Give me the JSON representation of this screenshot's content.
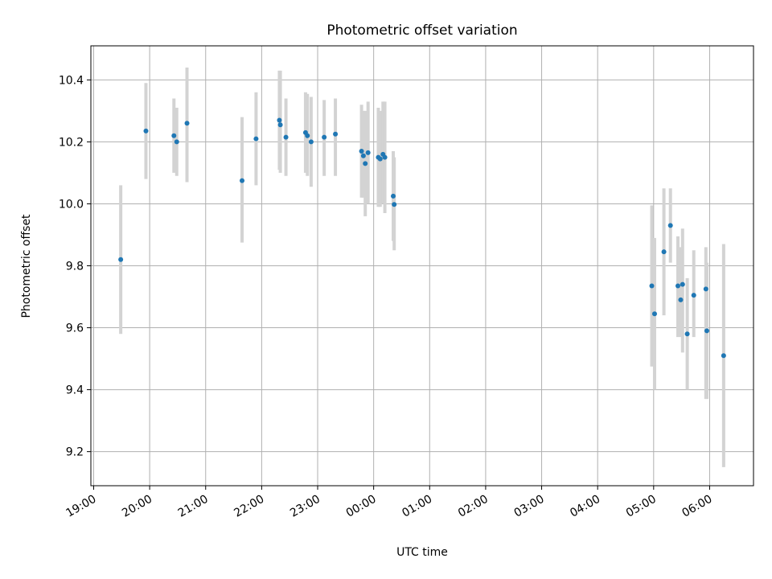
{
  "chart_data": {
    "type": "scatter",
    "title": "Photometric offset variation",
    "xlabel": "UTC time",
    "ylabel": "Photometric offset",
    "x_is_time": true,
    "xlim": [
      "18:57",
      "06:47"
    ],
    "ylim": [
      9.09,
      10.51
    ],
    "x_ticks": [
      "19:00",
      "20:00",
      "21:00",
      "22:00",
      "23:00",
      "00:00",
      "01:00",
      "02:00",
      "03:00",
      "04:00",
      "05:00",
      "06:00"
    ],
    "y_ticks": [
      "9.2",
      "9.4",
      "9.6",
      "9.8",
      "10.0",
      "10.2",
      "10.4"
    ],
    "grid": true,
    "colors": {
      "point": "#1f77b4",
      "error_bar": "#d3d3d3",
      "grid": "#b0b0b0"
    },
    "points": [
      {
        "t": "19:29",
        "y": 9.82,
        "ylo": 9.58,
        "yhi": 10.06
      },
      {
        "t": "19:56",
        "y": 10.235,
        "ylo": 10.08,
        "yhi": 10.39
      },
      {
        "t": "20:26",
        "y": 10.22,
        "ylo": 10.1,
        "yhi": 10.34
      },
      {
        "t": "20:29",
        "y": 10.2,
        "ylo": 10.09,
        "yhi": 10.31
      },
      {
        "t": "20:40",
        "y": 10.26,
        "ylo": 10.07,
        "yhi": 10.44
      },
      {
        "t": "21:39",
        "y": 10.075,
        "ylo": 9.875,
        "yhi": 10.28
      },
      {
        "t": "21:54",
        "y": 10.21,
        "ylo": 10.06,
        "yhi": 10.36
      },
      {
        "t": "22:19",
        "y": 10.27,
        "ylo": 10.11,
        "yhi": 10.43
      },
      {
        "t": "22:20",
        "y": 10.255,
        "ylo": 10.1,
        "yhi": 10.43
      },
      {
        "t": "22:26",
        "y": 10.215,
        "ylo": 10.09,
        "yhi": 10.34
      },
      {
        "t": "22:47",
        "y": 10.23,
        "ylo": 10.1,
        "yhi": 10.36
      },
      {
        "t": "22:49",
        "y": 10.22,
        "ylo": 10.09,
        "yhi": 10.355
      },
      {
        "t": "22:53",
        "y": 10.2,
        "ylo": 10.055,
        "yhi": 10.345
      },
      {
        "t": "23:07",
        "y": 10.215,
        "ylo": 10.09,
        "yhi": 10.335
      },
      {
        "t": "23:19",
        "y": 10.225,
        "ylo": 10.09,
        "yhi": 10.34
      },
      {
        "t": "23:47",
        "y": 10.17,
        "ylo": 10.02,
        "yhi": 10.32
      },
      {
        "t": "23:49",
        "y": 10.155,
        "ylo": 10.02,
        "yhi": 10.3
      },
      {
        "t": "23:51",
        "y": 10.13,
        "ylo": 9.96,
        "yhi": 10.3
      },
      {
        "t": "23:54",
        "y": 10.165,
        "ylo": 10.0,
        "yhi": 10.33
      },
      {
        "t": "00:05",
        "y": 10.15,
        "ylo": 9.99,
        "yhi": 10.31
      },
      {
        "t": "00:07",
        "y": 10.145,
        "ylo": 9.99,
        "yhi": 10.3
      },
      {
        "t": "00:10",
        "y": 10.16,
        "ylo": 10.0,
        "yhi": 10.33
      },
      {
        "t": "00:12",
        "y": 10.15,
        "ylo": 9.97,
        "yhi": 10.33
      },
      {
        "t": "00:21",
        "y": 10.025,
        "ylo": 9.88,
        "yhi": 10.17
      },
      {
        "t": "00:22",
        "y": 9.998,
        "ylo": 9.85,
        "yhi": 10.15
      },
      {
        "t": "04:58",
        "y": 9.735,
        "ylo": 9.475,
        "yhi": 9.995
      },
      {
        "t": "05:01",
        "y": 9.645,
        "ylo": 9.4,
        "yhi": 9.89
      },
      {
        "t": "05:11",
        "y": 9.845,
        "ylo": 9.64,
        "yhi": 10.05
      },
      {
        "t": "05:18",
        "y": 9.93,
        "ylo": 9.81,
        "yhi": 10.05
      },
      {
        "t": "05:26",
        "y": 9.735,
        "ylo": 9.57,
        "yhi": 9.895
      },
      {
        "t": "05:29",
        "y": 9.69,
        "ylo": 9.57,
        "yhi": 9.86
      },
      {
        "t": "05:31",
        "y": 9.74,
        "ylo": 9.52,
        "yhi": 9.92
      },
      {
        "t": "05:36",
        "y": 9.58,
        "ylo": 9.4,
        "yhi": 9.76
      },
      {
        "t": "05:43",
        "y": 9.705,
        "ylo": 9.57,
        "yhi": 9.85
      },
      {
        "t": "05:56",
        "y": 9.725,
        "ylo": 9.37,
        "yhi": 9.86
      },
      {
        "t": "05:57",
        "y": 9.59,
        "ylo": 9.37,
        "yhi": 9.81
      },
      {
        "t": "06:15",
        "y": 9.51,
        "ylo": 9.15,
        "yhi": 9.87
      }
    ]
  }
}
